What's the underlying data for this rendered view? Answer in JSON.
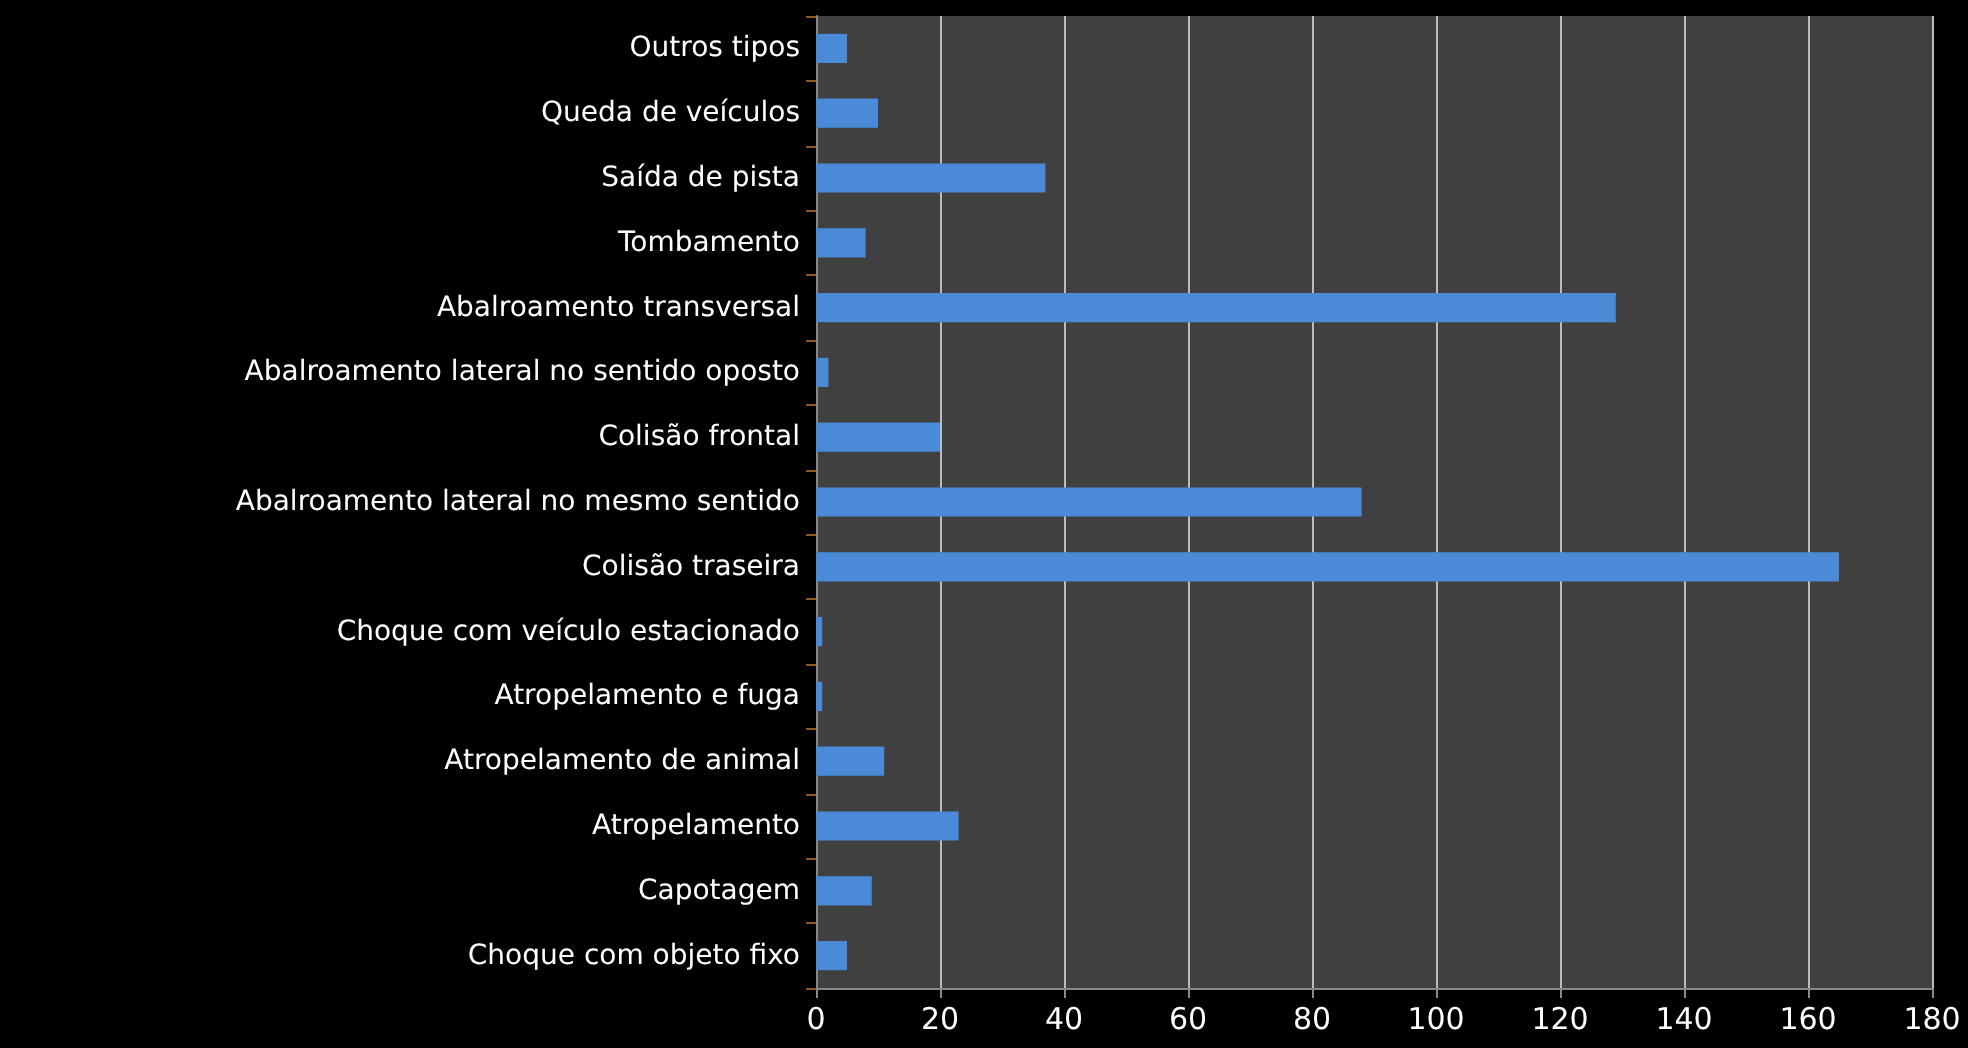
{
  "chart_data": {
    "type": "bar",
    "orientation": "horizontal",
    "categories": [
      "Outros tipos",
      "Queda de veículos",
      "Saída de pista",
      "Tombamento",
      "Abalroamento transversal",
      "Abalroamento lateral no sentido oposto",
      "Colisão frontal",
      "Abalroamento lateral no mesmo sentido",
      "Colisão traseira",
      "Choque com veículo estacionado",
      "Atropelamento e fuga",
      "Atropelamento de animal",
      "Atropelamento",
      "Capotagem",
      "Choque com objeto fixo"
    ],
    "values": [
      5,
      10,
      37,
      8,
      129,
      2,
      20,
      88,
      165,
      1,
      1,
      11,
      23,
      9,
      5
    ],
    "color": "#4a8ad6",
    "xlim": [
      0,
      180
    ],
    "xticks": [
      0,
      20,
      40,
      60,
      80,
      100,
      120,
      140,
      160,
      180
    ],
    "grid": "x"
  }
}
